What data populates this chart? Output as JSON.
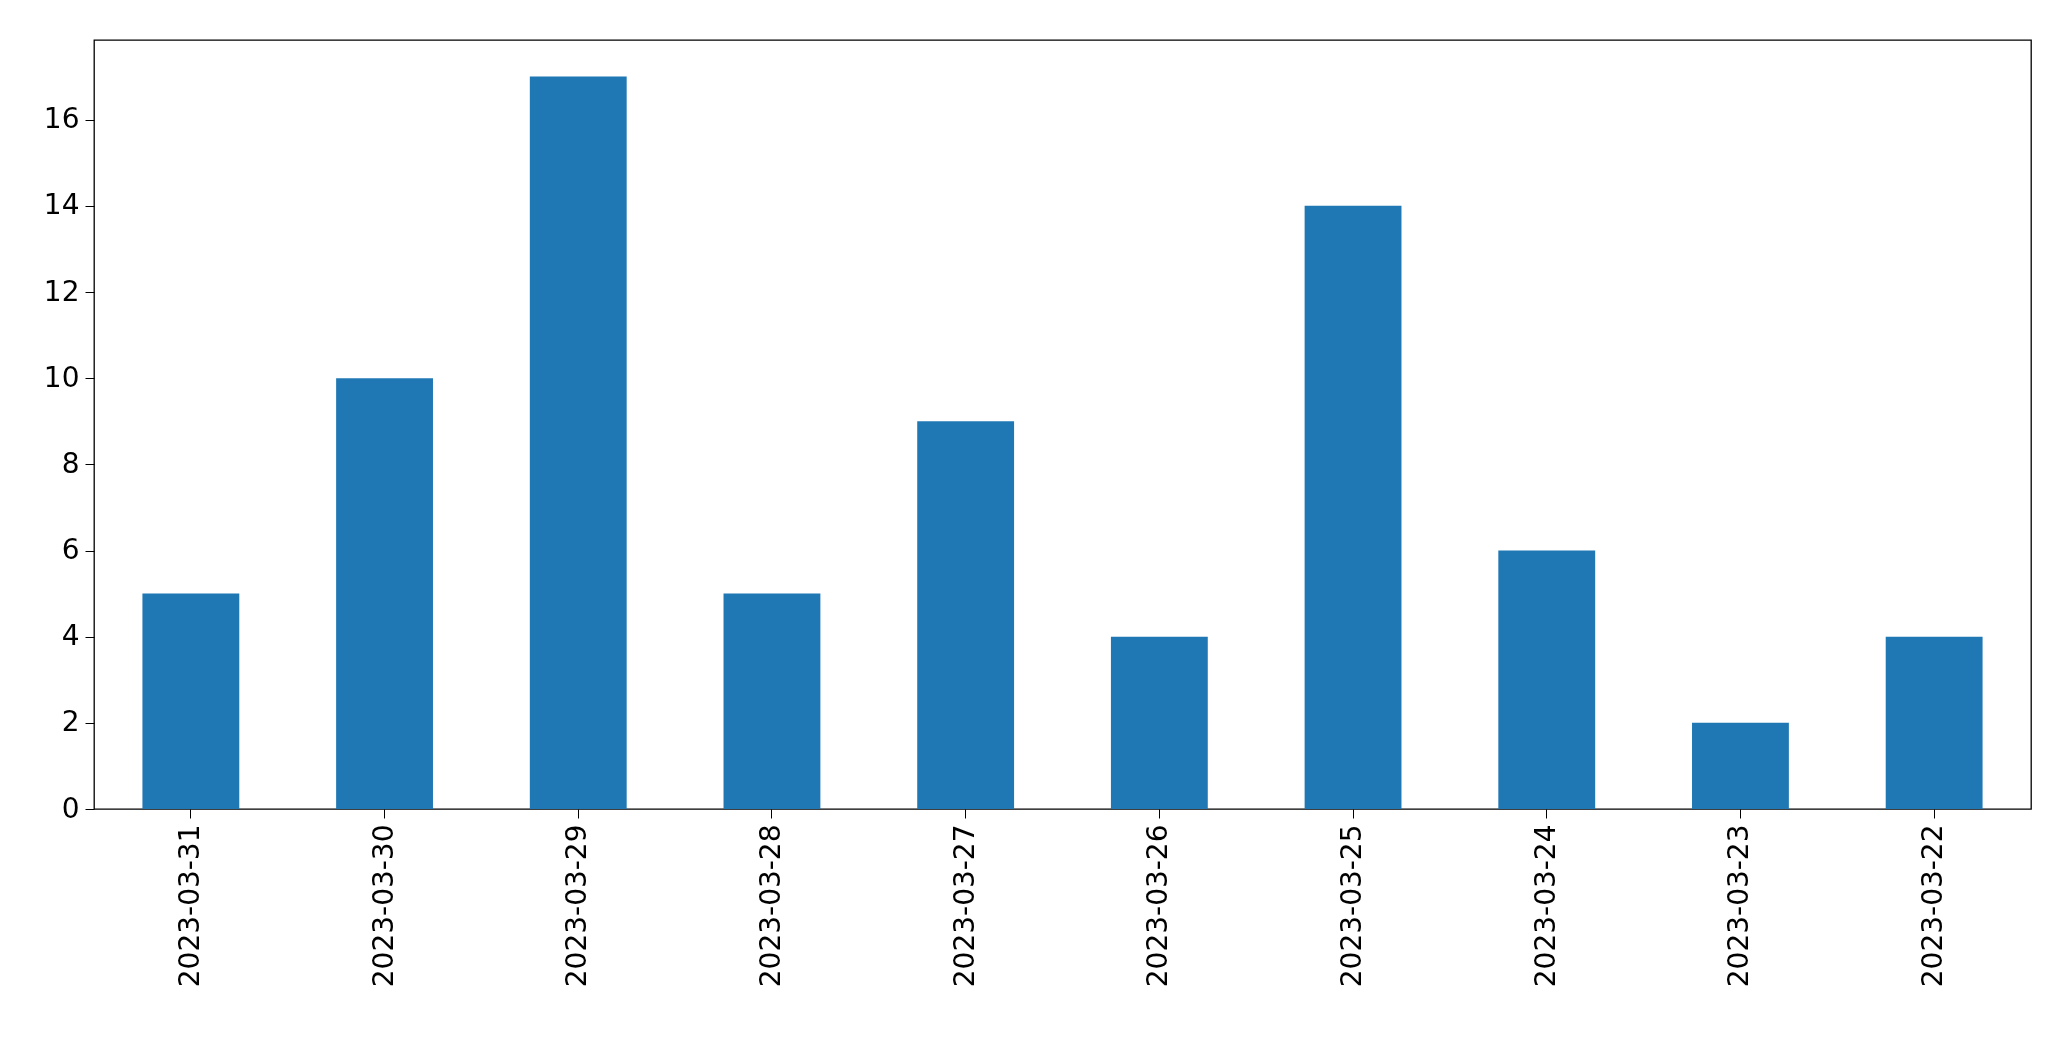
{
  "chart_data": {
    "type": "bar",
    "categories": [
      "2023-03-31",
      "2023-03-30",
      "2023-03-29",
      "2023-03-28",
      "2023-03-27",
      "2023-03-26",
      "2023-03-25",
      "2023-03-24",
      "2023-03-23",
      "2023-03-22"
    ],
    "values": [
      5,
      10,
      17,
      5,
      9,
      4,
      14,
      6,
      2,
      4
    ],
    "color": "#1f77b4",
    "ylim": [
      0,
      17.85
    ],
    "yticks": [
      0,
      2,
      4,
      6,
      8,
      10,
      12,
      14,
      16
    ],
    "grid": false
  }
}
